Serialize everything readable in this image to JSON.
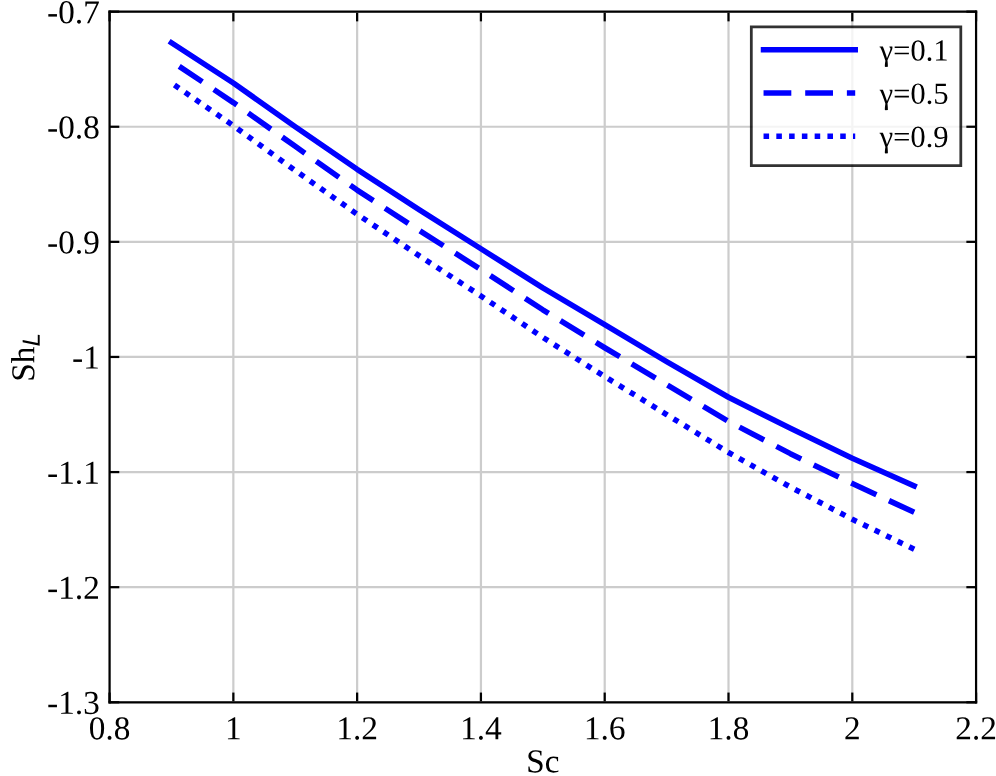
{
  "chart_data": {
    "type": "line",
    "xlabel": "Sc",
    "ylabel": "Sh$_{L}$",
    "x": [
      0.9,
      1.0,
      1.1,
      1.2,
      1.3,
      1.4,
      1.5,
      1.6,
      1.7,
      1.8,
      1.9,
      2.0,
      2.1
    ],
    "series": [
      {
        "name": "γ=0.1",
        "color": "#0000ff",
        "line_style": "solid",
        "values": [
          -0.727,
          -0.762,
          -0.8,
          -0.837,
          -0.872,
          -0.906,
          -0.94,
          -0.972,
          -1.004,
          -1.035,
          -1.062,
          -1.088,
          -1.112
        ]
      },
      {
        "name": "γ=0.5",
        "color": "#0000ff",
        "line_style": "dashed",
        "values": [
          -0.743,
          -0.779,
          -0.817,
          -0.855,
          -0.89,
          -0.924,
          -0.959,
          -0.992,
          -1.024,
          -1.056,
          -1.084,
          -1.11,
          -1.135
        ]
      },
      {
        "name": "γ=0.9",
        "color": "#0000ff",
        "line_style": "dotted",
        "values": [
          -0.762,
          -0.799,
          -0.838,
          -0.876,
          -0.912,
          -0.947,
          -0.983,
          -1.017,
          -1.05,
          -1.083,
          -1.113,
          -1.141,
          -1.167
        ]
      }
    ],
    "xlim": [
      0.8,
      2.2
    ],
    "xticks": [
      0.8,
      1,
      1.2,
      1.4,
      1.6,
      1.8,
      2,
      2.2
    ],
    "ylim": [
      -1.3,
      -0.7
    ],
    "yticks": [
      -1.3,
      -1.2,
      -1.1,
      -1,
      -0.9,
      -0.8,
      -0.7
    ],
    "grid": true,
    "legend": "top right"
  }
}
